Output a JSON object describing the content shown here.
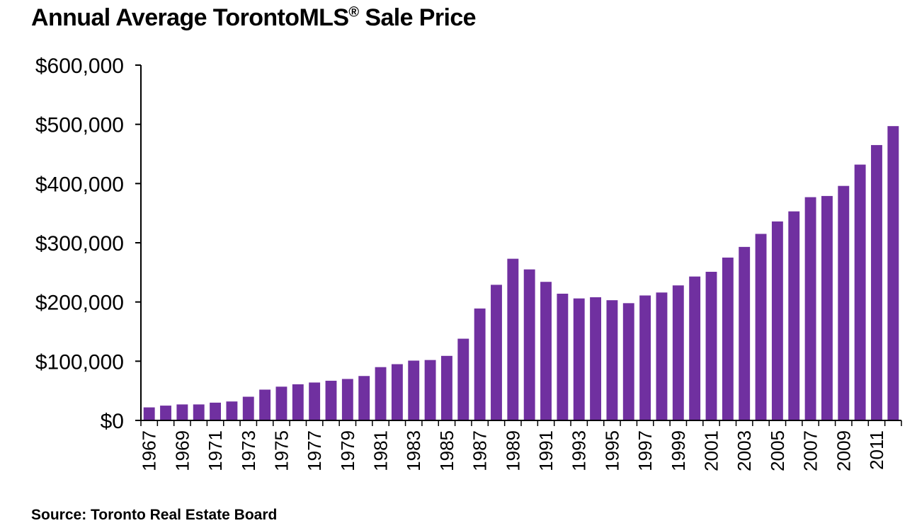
{
  "chart_data": {
    "type": "bar",
    "title": "Annual Average TorontoMLS",
    "title_mark": "®",
    "title_suffix": "Sale Price",
    "source": "Source: Toronto Real Estate Board",
    "xlabel": "",
    "ylabel": "",
    "ylim": [
      0,
      600000
    ],
    "yticks": [
      0,
      100000,
      200000,
      300000,
      400000,
      500000,
      600000
    ],
    "ytick_labels": [
      "$0",
      "$100,000",
      "$200,000",
      "$300,000",
      "$400,000",
      "$500,000",
      "$600,000"
    ],
    "bar_color": "#7030A0",
    "grid": false,
    "categories": [
      1967,
      1968,
      1969,
      1970,
      1971,
      1972,
      1973,
      1974,
      1975,
      1976,
      1977,
      1978,
      1979,
      1980,
      1981,
      1982,
      1983,
      1984,
      1985,
      1986,
      1987,
      1988,
      1989,
      1990,
      1991,
      1992,
      1993,
      1994,
      1995,
      1996,
      1997,
      1998,
      1999,
      2000,
      2001,
      2002,
      2003,
      2004,
      2005,
      2006,
      2007,
      2008,
      2009,
      2010,
      2011,
      2012
    ],
    "labeled_categories": [
      "1967",
      "1969",
      "1971",
      "1973",
      "1975",
      "1977",
      "1979",
      "1981",
      "1983",
      "1985",
      "1987",
      "1989",
      "1991",
      "1993",
      "1995",
      "1997",
      "1999",
      "2001",
      "2003",
      "2005",
      "2007",
      "2009",
      "2011"
    ],
    "values": [
      22000,
      25000,
      27000,
      27000,
      30000,
      32000,
      40000,
      52000,
      57000,
      61000,
      64000,
      67000,
      70000,
      75000,
      90000,
      95000,
      101000,
      102000,
      109000,
      138000,
      189000,
      229000,
      273000,
      255000,
      234000,
      214000,
      206000,
      208000,
      203000,
      198000,
      211000,
      216000,
      228000,
      243000,
      251000,
      275000,
      293000,
      315000,
      336000,
      353000,
      377000,
      379000,
      396000,
      432000,
      465000,
      497000
    ]
  }
}
